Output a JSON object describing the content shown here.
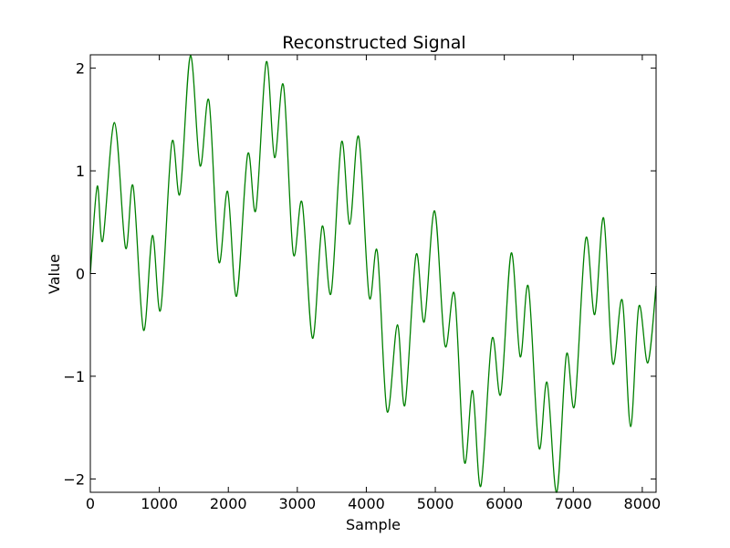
{
  "chart_data": {
    "type": "line",
    "title": "Reconstructed Signal",
    "xlabel": "Sample",
    "ylabel": "Value",
    "xlim": [
      0,
      8200
    ],
    "ylim": [
      -2.13,
      2.13
    ],
    "grid": false,
    "xticks": [
      0,
      1000,
      2000,
      3000,
      4000,
      5000,
      6000,
      7000,
      8000
    ],
    "xtick_labels": [
      "0",
      "1000",
      "2000",
      "3000",
      "4000",
      "5000",
      "6000",
      "7000",
      "8000"
    ],
    "yticks": [
      2,
      1,
      0,
      -1,
      -2
    ],
    "ytick_labels": [
      "2",
      "1",
      "0",
      "−1",
      "−2"
    ],
    "series": [
      {
        "color": "#008000",
        "x": [
          0,
          100,
          180,
          350,
          510,
          620,
          770,
          900,
          1020,
          1180,
          1300,
          1450,
          1590,
          1720,
          1860,
          1990,
          2120,
          2280,
          2400,
          2550,
          2670,
          2800,
          2940,
          3070,
          3220,
          3360,
          3490,
          3640,
          3760,
          3890,
          4040,
          4160,
          4300,
          4450,
          4560,
          4720,
          4840,
          4990,
          5140,
          5280,
          5420,
          5540,
          5660,
          5820,
          5950,
          6100,
          6230,
          6350,
          6500,
          6620,
          6760,
          6900,
          7020,
          7180,
          7310,
          7440,
          7570,
          7710,
          7830,
          7950,
          8080,
          8200
        ],
        "y": [
          0.0,
          0.85,
          0.32,
          1.47,
          0.25,
          0.85,
          -0.55,
          0.37,
          -0.35,
          1.27,
          0.78,
          2.12,
          1.05,
          1.68,
          0.12,
          0.8,
          -0.22,
          1.16,
          0.62,
          2.06,
          1.13,
          1.83,
          0.2,
          0.69,
          -0.63,
          0.46,
          -0.19,
          1.28,
          0.48,
          1.33,
          -0.22,
          0.21,
          -1.34,
          -0.5,
          -1.28,
          0.18,
          -0.47,
          0.61,
          -0.7,
          -0.21,
          -1.83,
          -1.14,
          -2.07,
          -0.64,
          -1.17,
          0.2,
          -0.81,
          -0.13,
          -1.69,
          -1.06,
          -2.13,
          -0.79,
          -1.28,
          0.34,
          -0.4,
          0.54,
          -0.87,
          -0.26,
          -1.49,
          -0.32,
          -0.87,
          -0.12
        ]
      }
    ]
  }
}
